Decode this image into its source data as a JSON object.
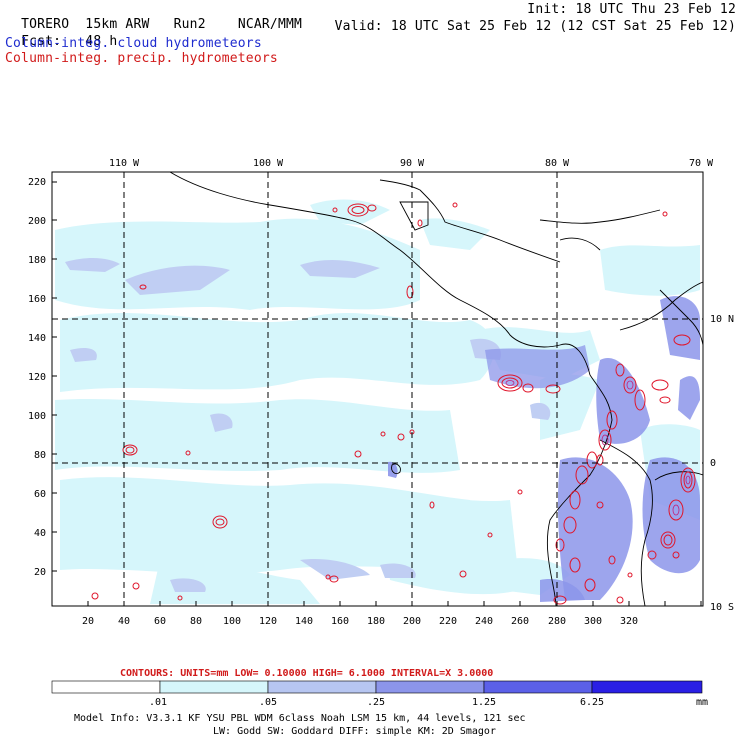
{
  "header": {
    "model": "TORERO",
    "resolution": "15km ARW",
    "run": "Run2",
    "org": "NCAR/MMM",
    "init": "Init: 18 UTC Thu 23 Feb 12",
    "fcst_label": "Fcst:",
    "fcst_value": "48 h",
    "valid": "Valid: 18 UTC Sat 25 Feb 12 (12 CST Sat 25 Feb 12)"
  },
  "legend_lines": {
    "cloud": "Column-integ. cloud hydrometeors",
    "precip": "Column-integ. precip. hydrometeors"
  },
  "map": {
    "lon_labels": [
      "110 W",
      "100 W",
      "90 W",
      "80 W",
      "70 W"
    ],
    "lat_labels": [
      "10 N",
      "0",
      "10 S"
    ],
    "x_ticks": [
      "20",
      "40",
      "60",
      "80",
      "100",
      "120",
      "140",
      "160",
      "180",
      "200",
      "220",
      "240",
      "260",
      "280",
      "300",
      "320"
    ],
    "y_ticks": [
      "220",
      "200",
      "180",
      "160",
      "140",
      "120",
      "100",
      "80",
      "60",
      "40",
      "20"
    ]
  },
  "contour_note": {
    "text": "CONTOURS:  UNITS=mm  LOW= 0.10000      HIGH=  6.1000      INTERVAL=X  3.0000"
  },
  "colorbar": {
    "levels": [
      ".01",
      ".05",
      ".25",
      "1.25",
      "6.25"
    ],
    "unit": "mm",
    "colors": [
      "#ffffff",
      "#d6f6fb",
      "#b7c6f1",
      "#8c95ea",
      "#5b60e8",
      "#2a1fe4"
    ]
  },
  "footer": {
    "line1": "Model Info: V3.3.1   KF      YSU PBL  WDM 6class  Noah LSM  15 km,   44 levels,  121 sec",
    "line2": "LW: Godd SW: Goddard DIFF: simple KM: 2D Smagor"
  },
  "colors": {
    "cloud_light": "#d6f6fb",
    "cloud_mid": "#c0cef3",
    "cloud_dark": "#8c95ea",
    "precip_contour": "#e0162b",
    "precip_contour_alt": "#c2207a"
  }
}
